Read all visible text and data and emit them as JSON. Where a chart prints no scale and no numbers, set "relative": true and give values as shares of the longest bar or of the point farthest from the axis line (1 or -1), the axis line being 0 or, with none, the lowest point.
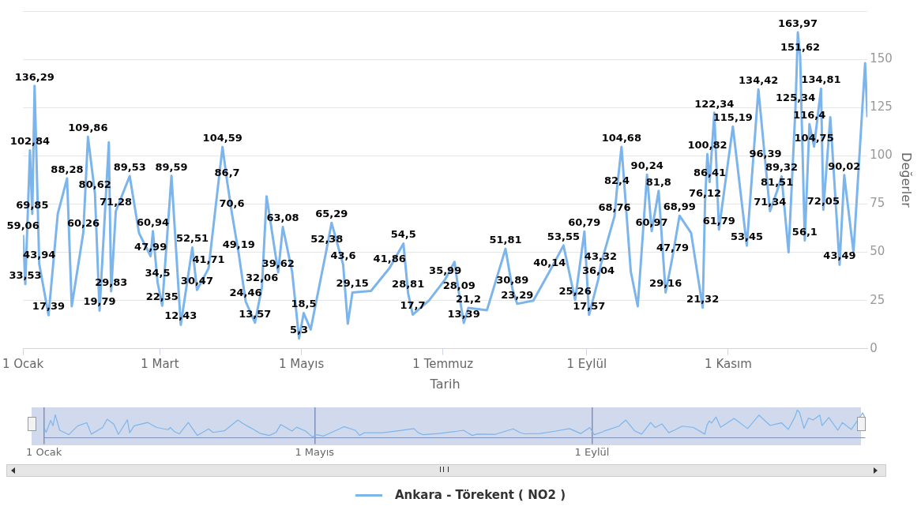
{
  "chart_data": [
    {
      "type": "line",
      "xlabel": "Tarih",
      "ylabel": "Değerler",
      "x": [
        "--01-01",
        "--01-02",
        "--01-04",
        "--01-05",
        "--01-06",
        "--01-08",
        "--01-12",
        "--01-16",
        "--01-20",
        "--01-22",
        "--01-27",
        "--01-29",
        "--02-01",
        "--02-03",
        "--02-07",
        "--02-08",
        "--02-10",
        "--02-16",
        "--02-20",
        "--02-25",
        "--02-26",
        "--02-28",
        "--03-02",
        "--03-06",
        "--03-10",
        "--03-15",
        "--03-17",
        "--03-22",
        "--03-28",
        "--03-30",
        "--04-01",
        "--04-04",
        "--04-07",
        "--04-11",
        "--04-14",
        "--04-16",
        "--04-21",
        "--04-23",
        "--04-27",
        "--04-30",
        "--05-02",
        "--05-05",
        "--05-12",
        "--05-14",
        "--05-19",
        "--05-21",
        "--05-23",
        "--05-31",
        "--06-08",
        "--06-14",
        "--06-16",
        "--06-18",
        "--06-25",
        "--07-02",
        "--07-06",
        "--07-08",
        "--07-10",
        "--07-12",
        "--07-20",
        "--07-28",
        "--07-31",
        "--08-02",
        "--08-09",
        "--08-16",
        "--08-22",
        "--08-27",
        "--08-31",
        "--09-02",
        "--09-06",
        "--09-07",
        "--09-13",
        "--09-14",
        "--09-16",
        "--09-20",
        "--09-23",
        "--09-27",
        "--09-29",
        "--10-02",
        "--10-05",
        "--10-08",
        "--10-11",
        "--10-16",
        "--10-21",
        "--10-22",
        "--10-23",
        "--10-24",
        "--10-26",
        "--10-28",
        "--11-03",
        "--11-09",
        "--11-14",
        "--11-17",
        "--11-19",
        "--11-22",
        "--11-24",
        "--11-27",
        "--11-30",
        "--12-01",
        "--12-02",
        "--12-04",
        "--12-06",
        "--12-08",
        "--12-11",
        "--12-12",
        "--12-15",
        "--12-19",
        "--12-21",
        "--12-25",
        "--12-30",
        "--12-31"
      ],
      "series": [
        {
          "name": "Ankara - Törekent ( NO2 )",
          "color": "#7cb5ec",
          "values": [
            59.06,
            33.53,
            102.84,
            69.85,
            136.29,
            43.94,
            17.39,
            70,
            88.28,
            22,
            60.26,
            109.86,
            80.62,
            19.79,
            107,
            29.83,
            71.28,
            89.53,
            60,
            47.99,
            60.94,
            34.5,
            22.35,
            89.59,
            12.43,
            52.51,
            30.47,
            41.71,
            104.59,
            86.7,
            70.6,
            49.19,
            24.46,
            13.57,
            32.06,
            79,
            39.62,
            63.08,
            40,
            5.3,
            18.5,
            10,
            52.38,
            65.29,
            43.6,
            13,
            29.15,
            30,
            41.86,
            54.5,
            28.81,
            17.7,
            25,
            35.99,
            45,
            28.09,
            13.39,
            21.2,
            20,
            51.81,
            30.89,
            23.29,
            25,
            40.14,
            53.55,
            25.26,
            60.79,
            17.57,
            36.04,
            43.32,
            68.76,
            82.4,
            104.68,
            40,
            22,
            90.24,
            60.97,
            81.8,
            29.16,
            47.79,
            68.99,
            60,
            21.32,
            76.12,
            100.82,
            86.41,
            122.34,
            61.79,
            115.19,
            53.45,
            134.42,
            96.39,
            71.34,
            81.51,
            89.32,
            50,
            125.34,
            163.97,
            151.62,
            56.1,
            116.4,
            104.75,
            134.81,
            72.05,
            120,
            43.49,
            90.02,
            50,
            148,
            120
          ],
          "value_labels": [
            "59,06",
            "33,53",
            "102,84",
            "69,85",
            "136,29",
            "43,94",
            "17,39",
            null,
            "88,28",
            null,
            "60,26",
            "109,86",
            "80,62",
            "19,79",
            null,
            "29,83",
            "71,28",
            "89,53",
            null,
            "47,99",
            "60,94",
            "34,5",
            "22,35",
            "89,59",
            "12,43",
            "52,51",
            "30,47",
            "41,71",
            "104,59",
            "86,7",
            "70,6",
            "49,19",
            "24,46",
            "13,57",
            "32,06",
            null,
            "39,62",
            "63,08",
            null,
            "5,3",
            "18,5",
            null,
            "52,38",
            "65,29",
            "43,6",
            null,
            "29,15",
            null,
            "41,86",
            "54,5",
            "28,81",
            "17,7",
            null,
            "35,99",
            null,
            "28,09",
            "13,39",
            "21,2",
            null,
            "51,81",
            "30,89",
            "23,29",
            null,
            "40,14",
            "53,55",
            "25,26",
            "60,79",
            "17,57",
            "36,04",
            "43,32",
            "68,76",
            "82,4",
            "104,68",
            null,
            null,
            "90,24",
            "60,97",
            "81,8",
            "29,16",
            "47,79",
            "68,99",
            null,
            "21,32",
            "76,12",
            "100,82",
            "86,41",
            "122,34",
            "61,79",
            "115,19",
            "53,45",
            "134,42",
            "96,39",
            "71,34",
            "81,51",
            "89,32",
            null,
            "125,34",
            "163,97",
            "151,62",
            "56,1",
            "116,4",
            "104,75",
            "134,81",
            "72,05",
            null,
            "43,49",
            "90,02",
            null,
            null,
            null
          ]
        }
      ],
      "xlim": [
        "--01-01",
        "--12-31"
      ],
      "xticks": [
        {
          "value": "--01-01",
          "label": "1 Ocak"
        },
        {
          "value": "--03-01",
          "label": "1 Mart"
        },
        {
          "value": "--05-01",
          "label": "1 Mayıs"
        },
        {
          "value": "--07-01",
          "label": "1 Temmuz"
        },
        {
          "value": "--09-01",
          "label": "1 Eylül"
        },
        {
          "value": "--11-01",
          "label": "1 Kasım"
        }
      ],
      "ylim": [
        0,
        175
      ],
      "yticks": [
        0,
        25,
        50,
        75,
        100,
        125,
        150,
        {
          "value": 175,
          "label": null
        }
      ],
      "grid": "y",
      "legend": "bottom"
    },
    {
      "type": "line",
      "x": [
        "--01-01",
        "--01-02",
        "--01-04",
        "--01-05",
        "--01-06",
        "--01-08",
        "--01-12",
        "--01-16",
        "--01-20",
        "--01-22",
        "--01-27",
        "--01-29",
        "--02-01",
        "--02-03",
        "--02-07",
        "--02-08",
        "--02-10",
        "--02-16",
        "--02-20",
        "--02-25",
        "--02-26",
        "--02-28",
        "--03-02",
        "--03-06",
        "--03-10",
        "--03-15",
        "--03-17",
        "--03-22",
        "--03-28",
        "--03-30",
        "--04-01",
        "--04-04",
        "--04-07",
        "--04-11",
        "--04-14",
        "--04-16",
        "--04-21",
        "--04-23",
        "--04-27",
        "--04-30",
        "--05-02",
        "--05-05",
        "--05-12",
        "--05-14",
        "--05-19",
        "--05-21",
        "--05-23",
        "--05-31",
        "--06-08",
        "--06-14",
        "--06-16",
        "--06-18",
        "--06-25",
        "--07-02",
        "--07-06",
        "--07-08",
        "--07-10",
        "--07-12",
        "--07-20",
        "--07-28",
        "--07-31",
        "--08-02",
        "--08-09",
        "--08-16",
        "--08-22",
        "--08-27",
        "--08-31",
        "--09-02",
        "--09-06",
        "--09-07",
        "--09-13",
        "--09-14",
        "--09-16",
        "--09-20",
        "--09-23",
        "--09-27",
        "--09-29",
        "--10-02",
        "--10-05",
        "--10-08",
        "--10-11",
        "--10-16",
        "--10-21",
        "--10-22",
        "--10-23",
        "--10-24",
        "--10-26",
        "--10-28",
        "--11-03",
        "--11-09",
        "--11-14",
        "--11-17",
        "--11-19",
        "--11-22",
        "--11-24",
        "--11-27",
        "--11-30",
        "--12-01",
        "--12-02",
        "--12-04",
        "--12-06",
        "--12-08",
        "--12-11",
        "--12-12",
        "--12-15",
        "--12-19",
        "--12-21",
        "--12-25",
        "--12-30",
        "--12-31"
      ],
      "series": [
        {
          "color": "#7cb5ec",
          "values": [
            0.36,
            0.2,
            0.63,
            0.43,
            0.83,
            0.27,
            0.11,
            0.43,
            0.54,
            0.13,
            0.37,
            0.67,
            0.49,
            0.12,
            0.65,
            0.18,
            0.43,
            0.55,
            0.37,
            0.29,
            0.37,
            0.21,
            0.14,
            0.55,
            0.08,
            0.32,
            0.19,
            0.25,
            0.64,
            0.53,
            0.43,
            0.3,
            0.15,
            0.08,
            0.2,
            0.48,
            0.24,
            0.38,
            0.24,
            0.03,
            0.11,
            0.06,
            0.32,
            0.4,
            0.27,
            0.08,
            0.18,
            0.18,
            0.26,
            0.33,
            0.18,
            0.11,
            0.15,
            0.22,
            0.27,
            0.17,
            0.08,
            0.13,
            0.12,
            0.32,
            0.19,
            0.14,
            0.15,
            0.24,
            0.33,
            0.15,
            0.37,
            0.11,
            0.22,
            0.26,
            0.42,
            0.5,
            0.64,
            0.24,
            0.13,
            0.55,
            0.37,
            0.5,
            0.18,
            0.29,
            0.42,
            0.37,
            0.13,
            0.46,
            0.61,
            0.53,
            0.75,
            0.38,
            0.7,
            0.33,
            0.82,
            0.59,
            0.44,
            0.5,
            0.54,
            0.3,
            0.76,
            1,
            0.92,
            0.34,
            0.71,
            0.64,
            0.82,
            0.44,
            0.73,
            0.27,
            0.55,
            0.3,
            0.9,
            0.73
          ]
        }
      ],
      "xlim": [
        "--01-01",
        "--12-31"
      ],
      "xticks": [
        {
          "value": "--01-01",
          "label": "1 Ocak"
        },
        {
          "value": "--05-01",
          "label": "1 Mayıs"
        },
        {
          "value": "--09-01",
          "label": "1 Eylül"
        }
      ],
      "relative": true,
      "grid": "x",
      "tick_labels": "x"
    }
  ]
}
